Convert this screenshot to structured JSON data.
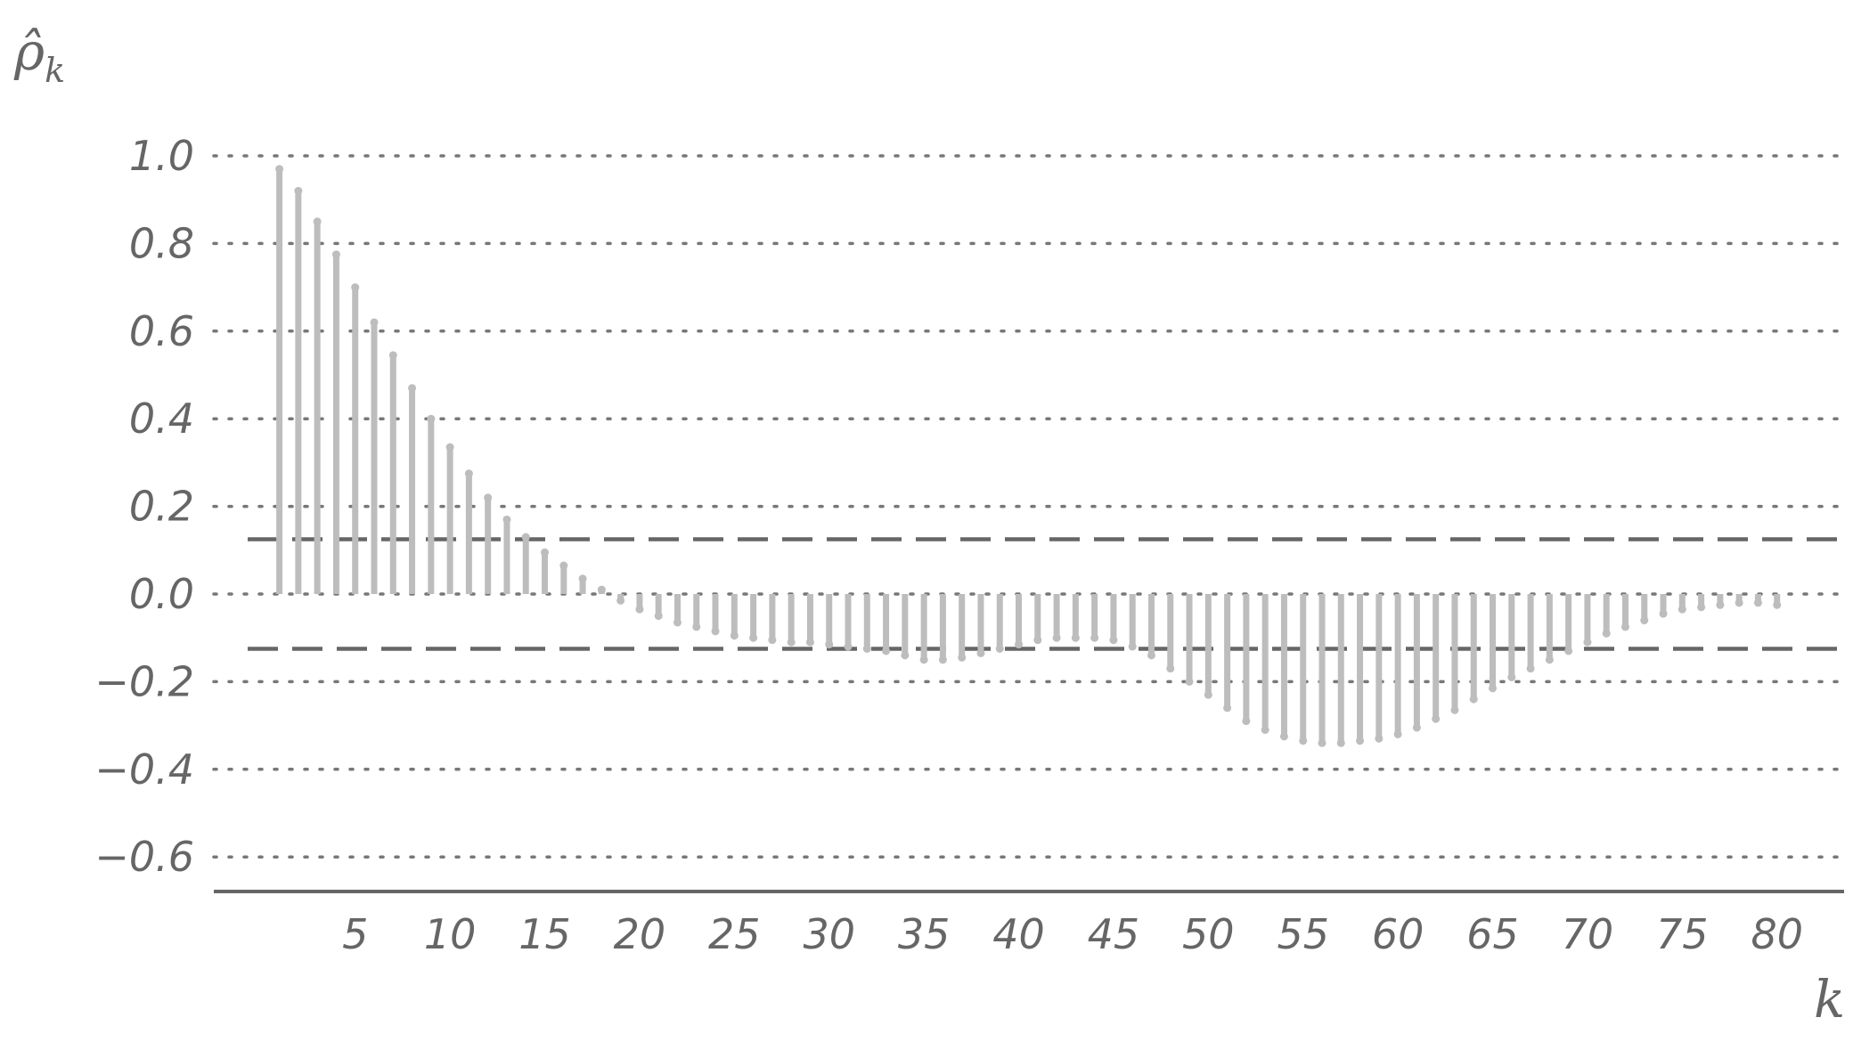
{
  "chart_data": {
    "type": "bar",
    "ylabel": "ρ̂",
    "ylabel_subscript": "k",
    "xlabel": "k",
    "ylim": [
      -0.68,
      1.0
    ],
    "xlim": [
      0.5,
      82
    ],
    "grid": true,
    "legend": "none",
    "yticks": [
      1.0,
      0.8,
      0.6,
      0.4,
      0.2,
      0.0,
      -0.2,
      -0.4,
      -0.6
    ],
    "ytick_labels": [
      "1.0",
      "0.8",
      "0.6",
      "0.4",
      "0.2",
      "0.0",
      "−0.2",
      "−0.4",
      "−0.6"
    ],
    "xticks": [
      5,
      10,
      15,
      20,
      25,
      30,
      35,
      40,
      45,
      50,
      55,
      60,
      65,
      70,
      75,
      80
    ],
    "xtick_labels": [
      "5",
      "10",
      "15",
      "20",
      "25",
      "30",
      "35",
      "40",
      "45",
      "50",
      "55",
      "60",
      "65",
      "70",
      "75",
      "80"
    ],
    "confidence_bound": 0.125,
    "x": [
      1,
      2,
      3,
      4,
      5,
      6,
      7,
      8,
      9,
      10,
      11,
      12,
      13,
      14,
      15,
      16,
      17,
      18,
      19,
      20,
      21,
      22,
      23,
      24,
      25,
      26,
      27,
      28,
      29,
      30,
      31,
      32,
      33,
      34,
      35,
      36,
      37,
      38,
      39,
      40,
      41,
      42,
      43,
      44,
      45,
      46,
      47,
      48,
      49,
      50,
      51,
      52,
      53,
      54,
      55,
      56,
      57,
      58,
      59,
      60,
      61,
      62,
      63,
      64,
      65,
      66,
      67,
      68,
      69,
      70,
      71,
      72,
      73,
      74,
      75,
      76,
      77,
      78,
      79,
      80
    ],
    "values": [
      0.97,
      0.92,
      0.85,
      0.775,
      0.7,
      0.62,
      0.545,
      0.47,
      0.4,
      0.335,
      0.275,
      0.22,
      0.17,
      0.13,
      0.095,
      0.065,
      0.035,
      0.01,
      -0.015,
      -0.035,
      -0.05,
      -0.065,
      -0.075,
      -0.085,
      -0.095,
      -0.1,
      -0.105,
      -0.11,
      -0.11,
      -0.115,
      -0.12,
      -0.125,
      -0.13,
      -0.14,
      -0.15,
      -0.15,
      -0.145,
      -0.135,
      -0.125,
      -0.115,
      -0.105,
      -0.1,
      -0.1,
      -0.1,
      -0.105,
      -0.12,
      -0.14,
      -0.17,
      -0.2,
      -0.23,
      -0.26,
      -0.29,
      -0.31,
      -0.325,
      -0.335,
      -0.34,
      -0.34,
      -0.335,
      -0.33,
      -0.32,
      -0.305,
      -0.285,
      -0.265,
      -0.24,
      -0.215,
      -0.19,
      -0.17,
      -0.15,
      -0.13,
      -0.11,
      -0.09,
      -0.075,
      -0.06,
      -0.045,
      -0.035,
      -0.03,
      -0.025,
      -0.02,
      -0.02,
      -0.025
    ]
  }
}
